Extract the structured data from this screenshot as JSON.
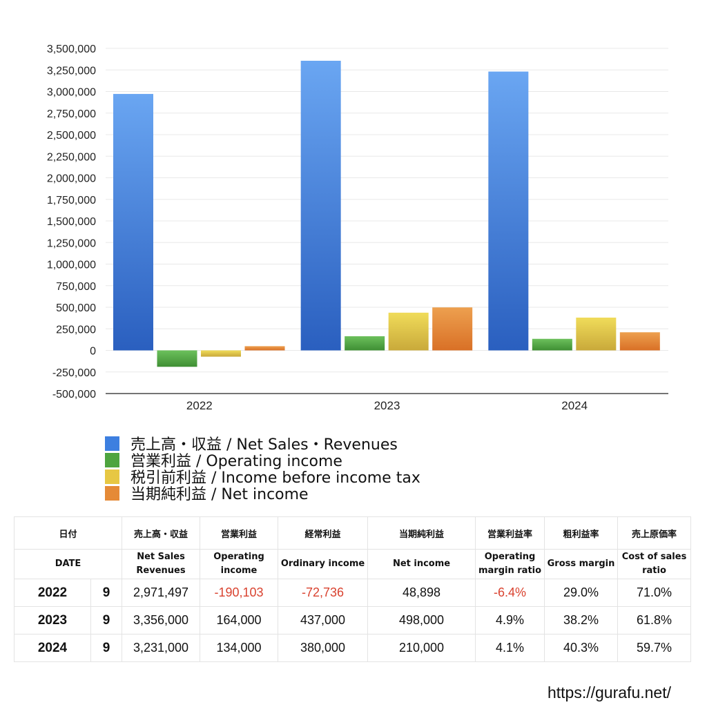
{
  "chart_data": {
    "type": "bar",
    "categories": [
      "2022",
      "2023",
      "2024"
    ],
    "series": [
      {
        "name": "売上高・収益 / Net Sales・Revenues",
        "values": [
          2971497,
          3356000,
          3231000
        ],
        "colors": [
          "#2a5fbf",
          "#6aa6f2"
        ]
      },
      {
        "name": "営業利益 / Operating income",
        "values": [
          -190103,
          164000,
          134000
        ],
        "colors": [
          "#3f8f34",
          "#6cc05c"
        ]
      },
      {
        "name": "税引前利益 / Income before income tax",
        "values": [
          -72736,
          437000,
          380000
        ],
        "colors": [
          "#c9a93a",
          "#f0dc5a"
        ]
      },
      {
        "name": "当期純利益 / Net income",
        "values": [
          48898,
          498000,
          210000
        ],
        "colors": [
          "#d97026",
          "#eda04f"
        ]
      }
    ],
    "ylim": [
      -500000,
      3500000
    ],
    "yticks": [
      "3,500,000",
      "3,250,000",
      "3,000,000",
      "2,750,000",
      "2,500,000",
      "2,250,000",
      "2,000,000",
      "1,750,000",
      "1,500,000",
      "1,250,000",
      "1,000,000",
      "750,000",
      "500,000",
      "250,000",
      "0",
      "-250,000",
      "-500,000"
    ],
    "grid": true,
    "legend_position": "bottom-left"
  },
  "legend": [
    {
      "label": "売上高・収益 / Net Sales・Revenues",
      "color": "#3d7fe0"
    },
    {
      "label": "営業利益 / Operating income",
      "color": "#4ea43f"
    },
    {
      "label": "税引前利益 / Income before income tax",
      "color": "#e7c743"
    },
    {
      "label": "当期純利益 / Net income",
      "color": "#e58a37"
    }
  ],
  "table": {
    "header_jp": [
      "日付",
      "売上高・収益",
      "営業利益",
      "経常利益",
      "当期純利益",
      "営業利益率",
      "粗利益率",
      "売上原価率"
    ],
    "header_en": [
      "DATE",
      "Net Sales\nRevenues",
      "Operating\nincome",
      "Ordinary income",
      "Net income",
      "Operating\nmargin ratio",
      "Gross margin",
      "Cost of sales\nratio"
    ],
    "rows": [
      {
        "year": "2022",
        "month": "9",
        "cells": [
          "2,971,497",
          "-190,103",
          "-72,736",
          "48,898",
          "-6.4%",
          "29.0%",
          "71.0%"
        ],
        "neg": [
          false,
          true,
          true,
          false,
          true,
          false,
          false
        ]
      },
      {
        "year": "2023",
        "month": "9",
        "cells": [
          "3,356,000",
          "164,000",
          "437,000",
          "498,000",
          "4.9%",
          "38.2%",
          "61.8%"
        ],
        "neg": [
          false,
          false,
          false,
          false,
          false,
          false,
          false
        ]
      },
      {
        "year": "2024",
        "month": "9",
        "cells": [
          "3,231,000",
          "134,000",
          "380,000",
          "210,000",
          "4.1%",
          "40.3%",
          "59.7%"
        ],
        "neg": [
          false,
          false,
          false,
          false,
          false,
          false,
          false
        ]
      }
    ]
  },
  "footer": {
    "url": "https://gurafu.net/"
  }
}
